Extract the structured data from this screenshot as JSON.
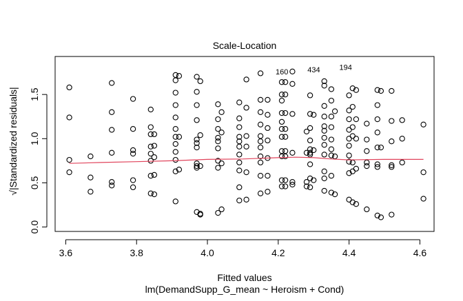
{
  "chart_data": {
    "type": "scatter",
    "title": "Scale-Location",
    "xlabel": "Fitted values",
    "sublabel": "lm(DemandSupp_G_mean ~ Heroism + Cond)",
    "ylabel": "√|Standardized residuals|",
    "xlim": [
      3.57,
      4.64
    ],
    "ylim": [
      -0.05,
      1.93
    ],
    "xticks": [
      3.6,
      3.8,
      4.0,
      4.2,
      4.4,
      4.6
    ],
    "xtick_labels": [
      "3.6",
      "3.8",
      "4.0",
      "4.2",
      "4.4",
      "4.6"
    ],
    "yticks": [
      0.0,
      0.5,
      1.0,
      1.5
    ],
    "ytick_labels": [
      "0.0",
      "0.5",
      "1.0",
      "1.5"
    ],
    "grid": false,
    "point_color": "#000000",
    "smooth_color": "#e0425a",
    "points": [
      [
        3.61,
        1.58
      ],
      [
        3.61,
        1.24
      ],
      [
        3.61,
        0.76
      ],
      [
        3.61,
        0.62
      ],
      [
        3.67,
        0.8
      ],
      [
        3.67,
        0.56
      ],
      [
        3.67,
        0.4
      ],
      [
        3.73,
        1.63
      ],
      [
        3.73,
        1.3
      ],
      [
        3.73,
        1.1
      ],
      [
        3.73,
        0.84
      ],
      [
        3.73,
        0.51
      ],
      [
        3.73,
        0.47
      ],
      [
        3.79,
        1.45
      ],
      [
        3.79,
        1.11
      ],
      [
        3.79,
        0.87
      ],
      [
        3.79,
        0.83
      ],
      [
        3.79,
        0.53
      ],
      [
        3.79,
        0.45
      ],
      [
        3.84,
        1.33
      ],
      [
        3.84,
        1.13
      ],
      [
        3.84,
        1.05
      ],
      [
        3.84,
        0.91
      ],
      [
        3.84,
        0.83
      ],
      [
        3.84,
        0.75
      ],
      [
        3.84,
        0.58
      ],
      [
        3.84,
        0.38
      ],
      [
        3.85,
        1.05
      ],
      [
        3.85,
        0.92
      ],
      [
        3.85,
        0.79
      ],
      [
        3.85,
        0.59
      ],
      [
        3.85,
        0.37
      ],
      [
        3.91,
        1.72
      ],
      [
        3.91,
        1.66
      ],
      [
        3.91,
        1.52
      ],
      [
        3.91,
        1.38
      ],
      [
        3.91,
        1.24
      ],
      [
        3.91,
        1.11
      ],
      [
        3.91,
        1.02
      ],
      [
        3.91,
        0.94
      ],
      [
        3.91,
        0.85
      ],
      [
        3.91,
        0.76
      ],
      [
        3.91,
        0.63
      ],
      [
        3.91,
        0.29
      ],
      [
        3.92,
        1.71
      ],
      [
        3.92,
        1.02
      ],
      [
        3.92,
        0.65
      ],
      [
        3.97,
        1.7
      ],
      [
        3.97,
        1.53
      ],
      [
        3.97,
        1.38
      ],
      [
        3.97,
        1.21
      ],
      [
        3.97,
        0.99
      ],
      [
        3.97,
        0.95
      ],
      [
        3.97,
        0.9
      ],
      [
        3.97,
        0.72
      ],
      [
        3.97,
        0.69
      ],
      [
        3.97,
        0.67
      ],
      [
        3.97,
        0.17
      ],
      [
        3.98,
        1.65
      ],
      [
        3.98,
        1.04
      ],
      [
        3.98,
        0.69
      ],
      [
        3.98,
        0.15
      ],
      [
        3.98,
        0.14
      ],
      [
        4.03,
        1.39
      ],
      [
        4.03,
        1.22
      ],
      [
        4.03,
        1.11
      ],
      [
        4.03,
        1.01
      ],
      [
        4.03,
        0.97
      ],
      [
        4.03,
        0.89
      ],
      [
        4.03,
        0.75
      ],
      [
        4.03,
        0.67
      ],
      [
        4.03,
        0.16
      ],
      [
        4.04,
        1.3
      ],
      [
        4.04,
        1.07
      ],
      [
        4.04,
        0.72
      ],
      [
        4.04,
        0.2
      ],
      [
        4.09,
        1.41
      ],
      [
        4.09,
        1.23
      ],
      [
        4.09,
        1.13
      ],
      [
        4.09,
        1.02
      ],
      [
        4.09,
        0.97
      ],
      [
        4.09,
        0.91
      ],
      [
        4.09,
        0.82
      ],
      [
        4.09,
        0.73
      ],
      [
        4.09,
        0.64
      ],
      [
        4.09,
        0.45
      ],
      [
        4.09,
        0.3
      ],
      [
        4.11,
        1.67
      ],
      [
        4.11,
        1.35
      ],
      [
        4.11,
        1.03
      ],
      [
        4.11,
        0.91
      ],
      [
        4.11,
        0.62
      ],
      [
        4.11,
        0.31
      ],
      [
        4.15,
        1.74
      ],
      [
        4.15,
        1.44
      ],
      [
        4.15,
        1.3
      ],
      [
        4.15,
        1.16
      ],
      [
        4.15,
        1.03
      ],
      [
        4.15,
        0.97
      ],
      [
        4.15,
        0.9
      ],
      [
        4.15,
        0.8
      ],
      [
        4.15,
        0.73
      ],
      [
        4.15,
        0.58
      ],
      [
        4.15,
        0.38
      ],
      [
        4.17,
        1.44
      ],
      [
        4.17,
        1.27
      ],
      [
        4.17,
        1.12
      ],
      [
        4.17,
        0.98
      ],
      [
        4.17,
        0.78
      ],
      [
        4.17,
        0.58
      ],
      [
        4.17,
        0.4
      ],
      [
        4.21,
        1.64
      ],
      [
        4.21,
        1.5
      ],
      [
        4.21,
        1.43
      ],
      [
        4.21,
        1.29
      ],
      [
        4.21,
        1.19
      ],
      [
        4.21,
        1.11
      ],
      [
        4.21,
        1.02
      ],
      [
        4.21,
        0.86
      ],
      [
        4.21,
        0.8
      ],
      [
        4.21,
        0.53
      ],
      [
        4.21,
        0.46
      ],
      [
        4.22,
        1.64
      ],
      [
        4.22,
        1.5
      ],
      [
        4.22,
        1.29
      ],
      [
        4.22,
        1.11
      ],
      [
        4.22,
        1.02
      ],
      [
        4.22,
        0.86
      ],
      [
        4.22,
        0.8
      ],
      [
        4.22,
        0.53
      ],
      [
        4.22,
        0.46
      ],
      [
        4.24,
        1.76
      ],
      [
        4.24,
        1.62
      ],
      [
        4.24,
        1.28
      ],
      [
        4.24,
        0.84
      ],
      [
        4.24,
        0.51
      ],
      [
        4.24,
        0.48
      ],
      [
        4.28,
        1.08
      ],
      [
        4.28,
        0.84
      ],
      [
        4.28,
        0.51
      ],
      [
        4.28,
        0.46
      ],
      [
        4.29,
        1.49
      ],
      [
        4.29,
        1.28
      ],
      [
        4.29,
        1.12
      ],
      [
        4.29,
        0.98
      ],
      [
        4.29,
        0.88
      ],
      [
        4.29,
        0.84
      ],
      [
        4.29,
        0.82
      ],
      [
        4.29,
        0.71
      ],
      [
        4.29,
        0.55
      ],
      [
        4.29,
        0.45
      ],
      [
        4.3,
        1.27
      ],
      [
        4.3,
        0.87
      ],
      [
        4.3,
        0.53
      ],
      [
        4.33,
        1.65
      ],
      [
        4.33,
        1.6
      ],
      [
        4.33,
        1.37
      ],
      [
        4.33,
        1.25
      ],
      [
        4.33,
        1.14
      ],
      [
        4.33,
        1.09
      ],
      [
        4.33,
        1.01
      ],
      [
        4.33,
        0.93
      ],
      [
        4.33,
        0.82
      ],
      [
        4.33,
        0.63
      ],
      [
        4.33,
        0.55
      ],
      [
        4.33,
        0.41
      ],
      [
        4.35,
        1.56
      ],
      [
        4.35,
        1.43
      ],
      [
        4.35,
        1.25
      ],
      [
        4.35,
        1.13
      ],
      [
        4.35,
        0.99
      ],
      [
        4.35,
        0.88
      ],
      [
        4.35,
        0.81
      ],
      [
        4.35,
        0.58
      ],
      [
        4.35,
        0.39
      ],
      [
        4.36,
        1.31
      ],
      [
        4.36,
        0.8
      ],
      [
        4.36,
        0.37
      ],
      [
        4.4,
        1.49
      ],
      [
        4.4,
        1.32
      ],
      [
        4.4,
        1.22
      ],
      [
        4.4,
        1.1
      ],
      [
        4.4,
        1.0
      ],
      [
        4.4,
        0.92
      ],
      [
        4.4,
        0.81
      ],
      [
        4.4,
        0.74
      ],
      [
        4.4,
        0.61
      ],
      [
        4.4,
        0.31
      ],
      [
        4.41,
        1.57
      ],
      [
        4.41,
        1.36
      ],
      [
        4.41,
        1.13
      ],
      [
        4.41,
        1.03
      ],
      [
        4.41,
        0.73
      ],
      [
        4.41,
        0.63
      ],
      [
        4.41,
        0.28
      ],
      [
        4.42,
        1.55
      ],
      [
        4.42,
        1.22
      ],
      [
        4.42,
        1.0
      ],
      [
        4.42,
        0.66
      ],
      [
        4.42,
        0.26
      ],
      [
        4.45,
        1.17
      ],
      [
        4.45,
        0.99
      ],
      [
        4.45,
        0.86
      ],
      [
        4.45,
        0.73
      ],
      [
        4.45,
        0.69
      ],
      [
        4.45,
        0.2
      ],
      [
        4.48,
        1.55
      ],
      [
        4.48,
        1.38
      ],
      [
        4.48,
        1.22
      ],
      [
        4.48,
        1.07
      ],
      [
        4.48,
        0.9
      ],
      [
        4.48,
        0.71
      ],
      [
        4.48,
        0.68
      ],
      [
        4.48,
        0.13
      ],
      [
        4.49,
        1.54
      ],
      [
        4.49,
        0.9
      ],
      [
        4.49,
        0.11
      ],
      [
        4.52,
        1.54
      ],
      [
        4.52,
        1.2
      ],
      [
        4.52,
        0.97
      ],
      [
        4.52,
        0.7
      ],
      [
        4.52,
        0.68
      ],
      [
        4.52,
        0.14
      ],
      [
        4.55,
        1.21
      ],
      [
        4.55,
        1.0
      ],
      [
        4.55,
        0.73
      ],
      [
        4.61,
        1.16
      ],
      [
        4.61,
        0.62
      ],
      [
        4.61,
        0.32
      ]
    ],
    "smooth_line": [
      [
        3.61,
        0.72
      ],
      [
        3.7,
        0.73
      ],
      [
        3.8,
        0.74
      ],
      [
        3.9,
        0.75
      ],
      [
        4.0,
        0.765
      ],
      [
        4.1,
        0.77
      ],
      [
        4.2,
        0.785
      ],
      [
        4.25,
        0.79
      ],
      [
        4.3,
        0.785
      ],
      [
        4.35,
        0.77
      ],
      [
        4.4,
        0.76
      ],
      [
        4.5,
        0.765
      ],
      [
        4.61,
        0.765
      ]
    ],
    "annotations": [
      {
        "text": "160",
        "x": 4.24,
        "y": 1.76
      },
      {
        "text": "434",
        "x": 4.33,
        "y": 1.78
      },
      {
        "text": "194",
        "x": 4.42,
        "y": 1.81
      }
    ]
  }
}
